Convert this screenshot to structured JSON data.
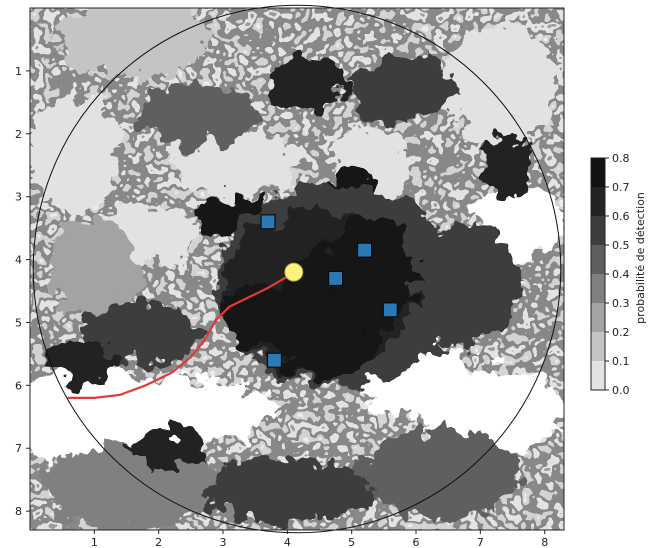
{
  "chart_data": [
    {
      "type": "heatmap",
      "title": "",
      "xlabel": "",
      "ylabel": "",
      "xlim": [
        0,
        8.3
      ],
      "ylim": [
        8.3,
        0
      ],
      "x_ticks": [
        "1",
        "2",
        "3",
        "4",
        "5",
        "6",
        "7",
        "8"
      ],
      "y_ticks": [
        "1",
        "2",
        "3",
        "4",
        "5",
        "6",
        "7",
        "8"
      ],
      "grid": false,
      "colormap": "greys (discrete contour levels)",
      "colorbar": {
        "label": "probabilité de détection",
        "ticks": [
          "0.0",
          "0.1",
          "0.2",
          "0.3",
          "0.4",
          "0.5",
          "0.6",
          "0.7",
          "0.8"
        ],
        "levels": [
          0.0,
          0.1,
          0.2,
          0.3,
          0.4,
          0.5,
          0.6,
          0.7,
          0.8
        ],
        "colors": [
          "#ffffff",
          "#e2e2e2",
          "#c4c4c4",
          "#a3a3a3",
          "#808080",
          "#5e5e5e",
          "#3d3d3d",
          "#232323",
          "#121212"
        ]
      },
      "boundary_circle": {
        "cx": 4.15,
        "cy": 4.15,
        "r": 4.1,
        "color": "#111111"
      },
      "target": {
        "x": 4.1,
        "y": 4.2,
        "color": "#fff27a"
      },
      "sensors": {
        "color": "#2a7ab8",
        "points": [
          {
            "x": 3.7,
            "y": 3.4
          },
          {
            "x": 5.2,
            "y": 3.85
          },
          {
            "x": 4.75,
            "y": 4.3
          },
          {
            "x": 5.6,
            "y": 4.8
          },
          {
            "x": 3.8,
            "y": 5.6
          }
        ]
      },
      "trajectory": {
        "color": "#e2393b",
        "x": [
          0.6,
          1.0,
          1.4,
          1.8,
          2.2,
          2.5,
          2.7,
          2.9,
          3.1,
          3.4,
          3.7,
          3.95,
          4.1
        ],
        "y": [
          6.2,
          6.2,
          6.15,
          6.0,
          5.8,
          5.55,
          5.3,
          4.95,
          4.75,
          4.6,
          4.45,
          4.3,
          4.22
        ]
      }
    }
  ]
}
